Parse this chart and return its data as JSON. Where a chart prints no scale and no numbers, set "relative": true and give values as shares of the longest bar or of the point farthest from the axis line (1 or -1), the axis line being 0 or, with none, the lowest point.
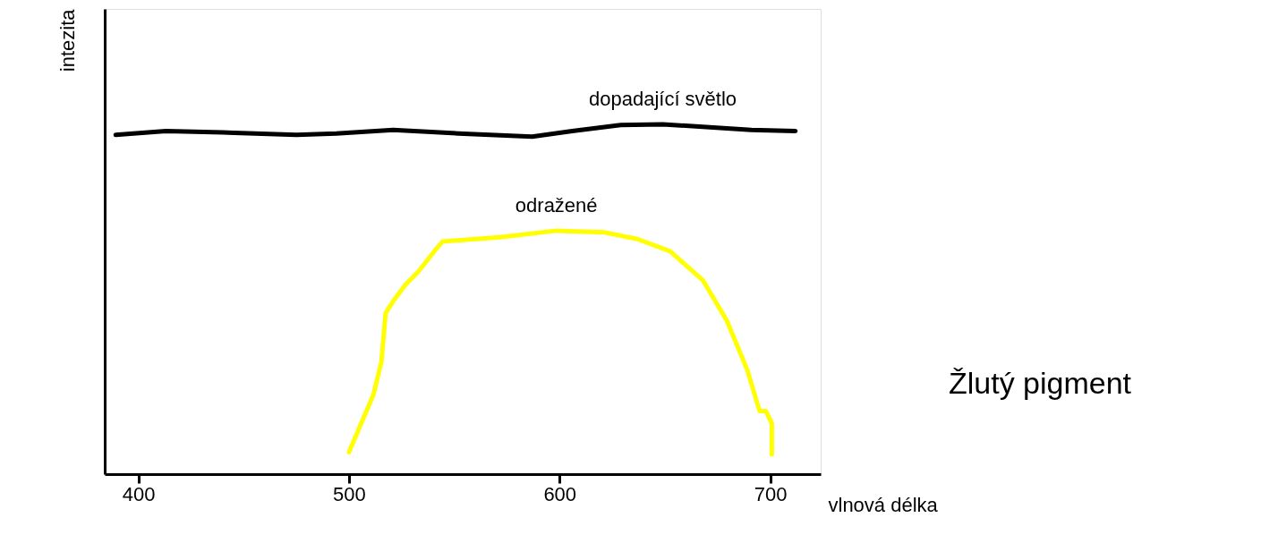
{
  "chart_data": {
    "type": "line",
    "relative": true,
    "xlabel": "vlnová délka",
    "ylabel": "intezita",
    "xlim": [
      384,
      724
    ],
    "xticks": [
      400,
      500,
      600,
      700
    ],
    "grid": false,
    "marker": "none",
    "line_style": "solid",
    "series": [
      {
        "name": "dopadající světlo",
        "color": "#000000",
        "x": [
          389.2,
          413,
          440,
          475,
          494,
          521,
          552,
          587,
          606,
          629,
          649,
          668,
          691,
          712
        ],
        "values": [
          0.97,
          0.981,
          0.977,
          0.97,
          0.974,
          0.984,
          0.974,
          0.965,
          0.981,
          0.998,
          1.0,
          0.993,
          0.984,
          0.981
        ]
      },
      {
        "name": "odražené",
        "color": "#ffff00",
        "x": [
          500,
          505.8,
          511.6,
          515.4,
          517.4,
          521.2,
          527,
          532.8,
          540.5,
          544.4,
          548.3,
          571.4,
          598.5,
          621.6,
          637,
          652.5,
          668,
          679.5,
          689.2,
          695,
          698,
          700.8,
          700.8
        ],
        "values": [
          0.063,
          0.145,
          0.227,
          0.321,
          0.461,
          0.496,
          0.543,
          0.578,
          0.637,
          0.665,
          0.667,
          0.677,
          0.696,
          0.691,
          0.672,
          0.637,
          0.555,
          0.438,
          0.297,
          0.18,
          0.18,
          0.145,
          0.056
        ]
      }
    ],
    "annotations": [
      "Žlutý pigment"
    ]
  }
}
